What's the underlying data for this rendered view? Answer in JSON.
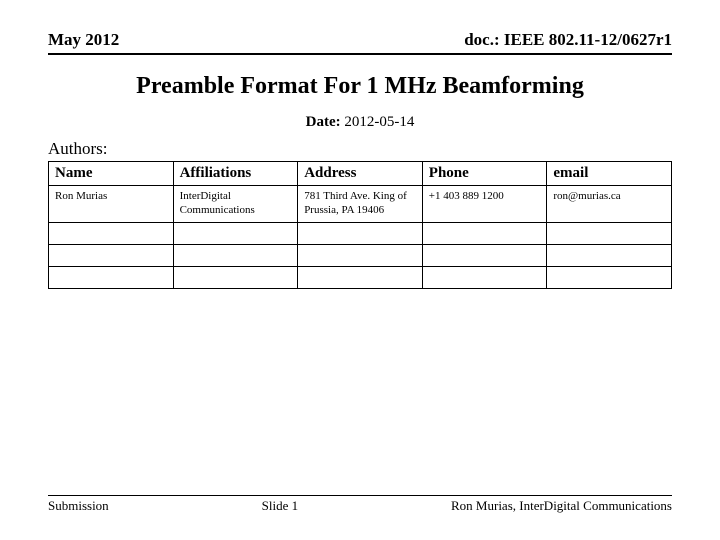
{
  "header": {
    "left": "May 2012",
    "right": "doc.: IEEE 802.11-12/0627r1"
  },
  "title": "Preamble Format For 1 MHz Beamforming",
  "date_label": "Date:",
  "date_value": "2012-05-14",
  "authors_label": "Authors:",
  "table": {
    "columns": [
      "Name",
      "Affiliations",
      "Address",
      "Phone",
      "email"
    ],
    "rows": [
      [
        "Ron Murias",
        "InterDigital Communications",
        "781 Third Ave. King of Prussia, PA 19406",
        "+1 403 889 1200",
        "ron@murias.ca"
      ],
      [
        "",
        "",
        "",
        "",
        ""
      ],
      [
        "",
        "",
        "",
        "",
        ""
      ],
      [
        "",
        "",
        "",
        "",
        ""
      ]
    ]
  },
  "footer": {
    "left": "Submission",
    "center": "Slide 1",
    "right": "Ron Murias, InterDigital Communications"
  }
}
